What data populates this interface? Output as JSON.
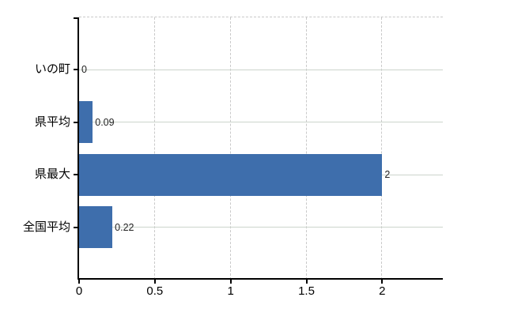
{
  "chart_data": {
    "type": "bar",
    "orientation": "horizontal",
    "title": "",
    "categories": [
      "いの町",
      "県平均",
      "県最大",
      "全国平均"
    ],
    "values": [
      0,
      0.09,
      2,
      0.22
    ],
    "value_labels": [
      "0",
      "0.09",
      "2",
      "0.22"
    ],
    "x_ticks": [
      0,
      0.5,
      1,
      1.5,
      2
    ],
    "x_tick_labels": [
      "0",
      "0.5",
      "1",
      "1.5",
      "2"
    ],
    "xlim": [
      0,
      2.4
    ],
    "grid": "on",
    "legend": "none",
    "colors": {
      "bar": "#3e6eac",
      "h_gridline": "#ccd4cc",
      "v_gridline": "#c9c9c9",
      "axis": "#000000",
      "category_label": "#000000",
      "tick_label": "#000000",
      "value_label": "#222222",
      "background": "#ffffff"
    }
  }
}
